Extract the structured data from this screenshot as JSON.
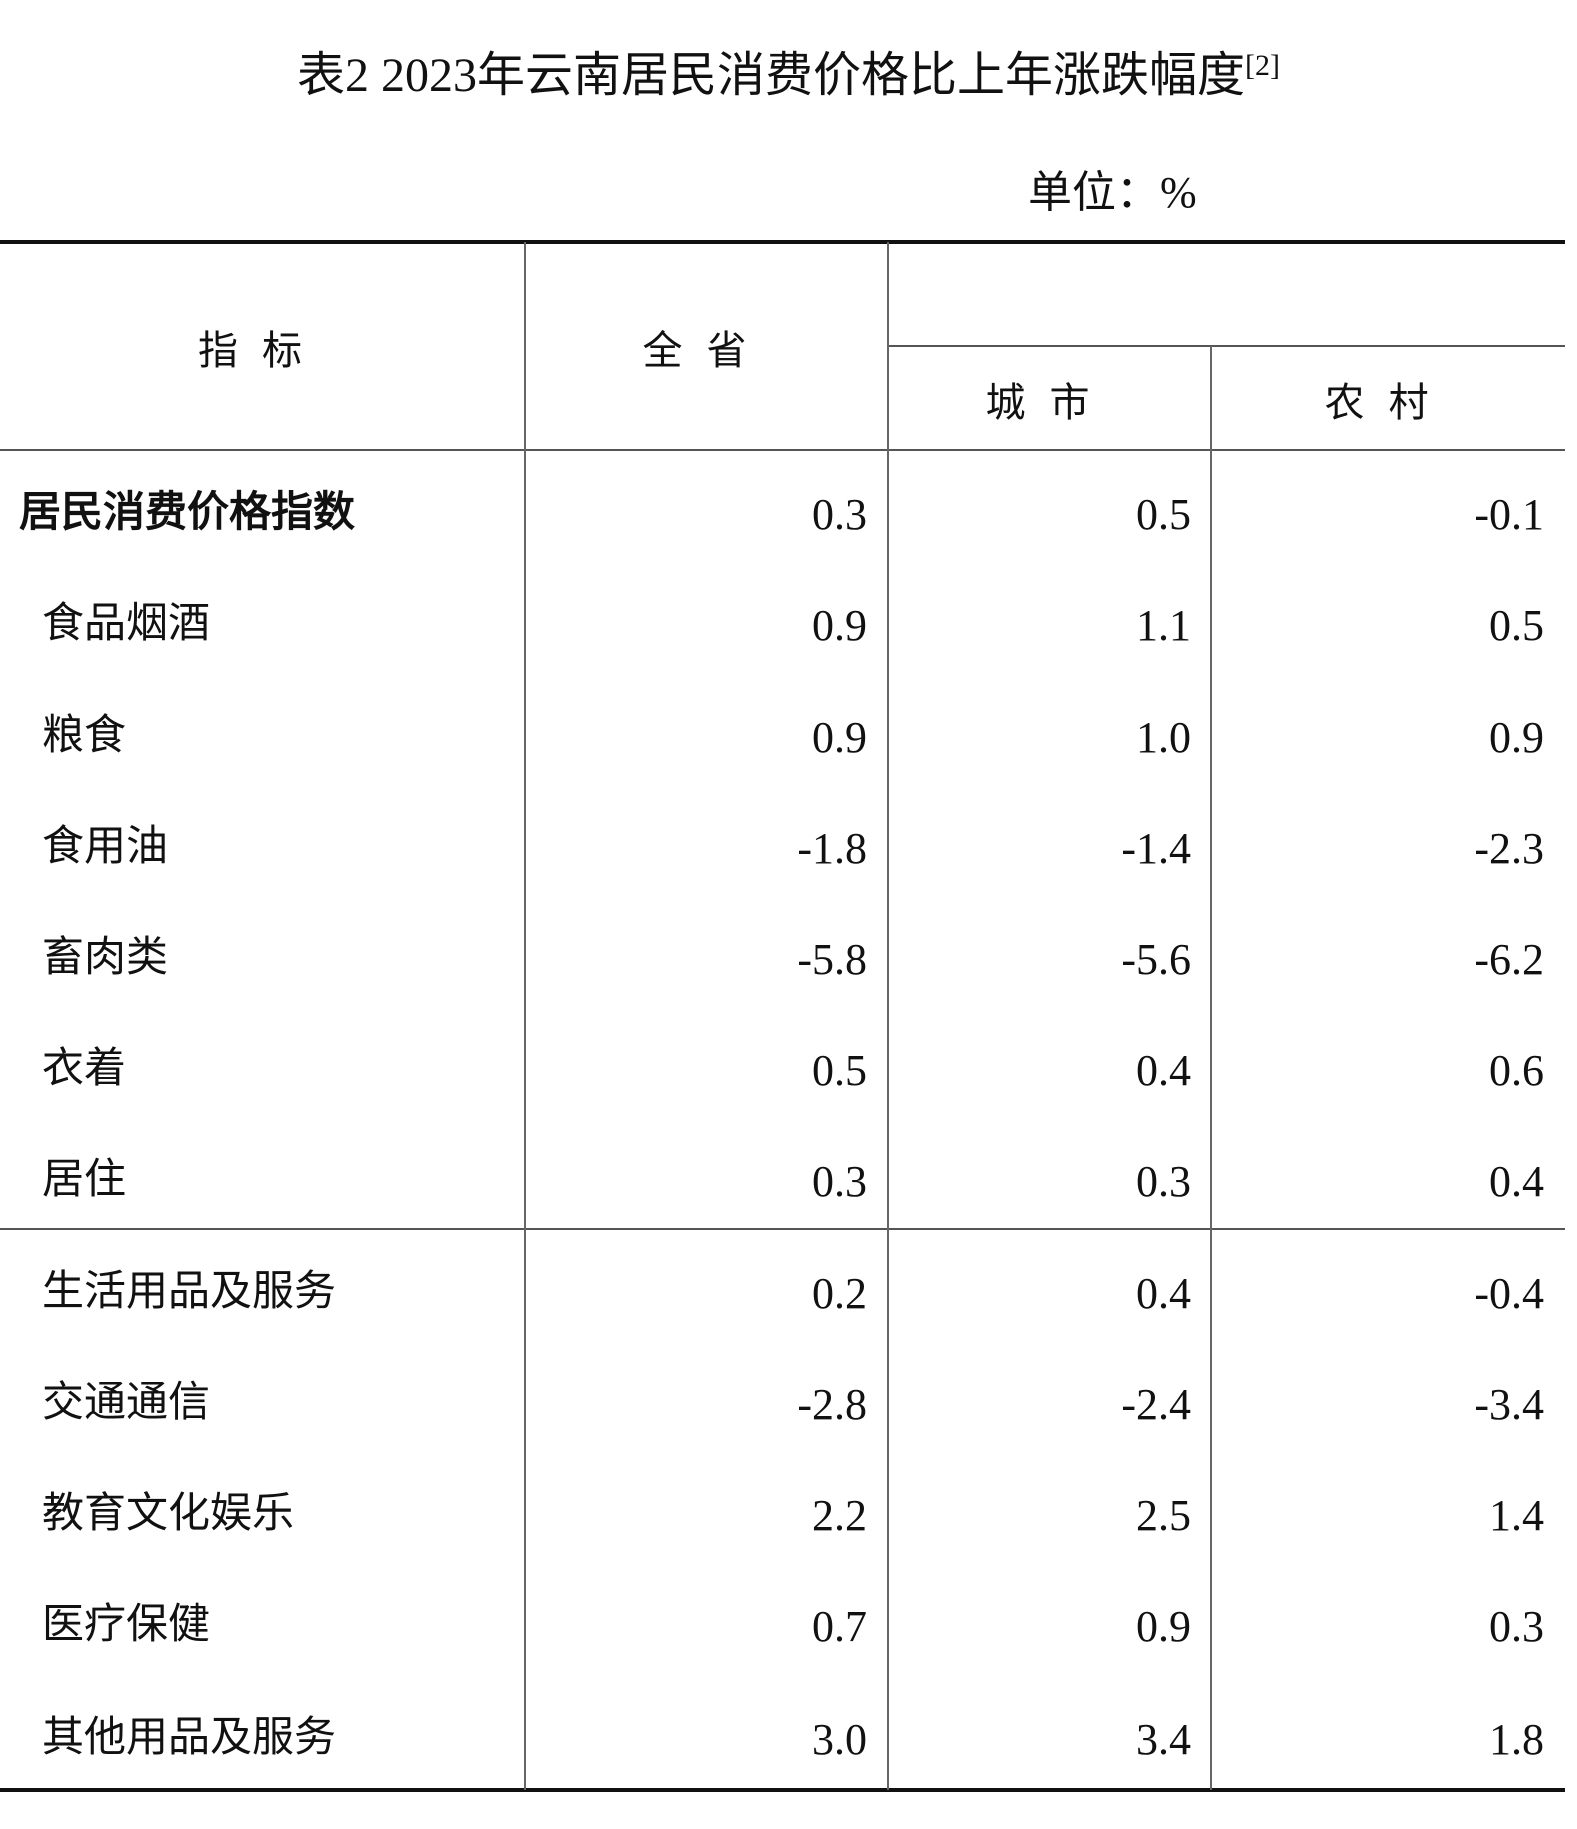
{
  "title": "表2 2023年云南居民消费价格比上年涨跌幅度",
  "title_note": "[2]",
  "unit": "单位：%",
  "headers": {
    "indicator": "指标",
    "province": "全省",
    "city": "城市",
    "rural": "农村"
  },
  "rows": [
    {
      "label": "居民消费价格指数",
      "province": "0.3",
      "city": "0.5",
      "rural": "-0.1"
    },
    {
      "label": "食品烟酒",
      "province": "0.9",
      "city": "1.1",
      "rural": "0.5"
    },
    {
      "label": "粮食",
      "province": "0.9",
      "city": "1.0",
      "rural": "0.9"
    },
    {
      "label": "食用油",
      "province": "-1.8",
      "city": "-1.4",
      "rural": "-2.3"
    },
    {
      "label": "畜肉类",
      "province": "-5.8",
      "city": "-5.6",
      "rural": "-6.2"
    },
    {
      "label": "衣着",
      "province": "0.5",
      "city": "0.4",
      "rural": "0.6"
    },
    {
      "label": "居住",
      "province": "0.3",
      "city": "0.3",
      "rural": "0.4"
    },
    {
      "label": "生活用品及服务",
      "province": "0.2",
      "city": "0.4",
      "rural": "-0.4"
    },
    {
      "label": "交通通信",
      "province": "-2.8",
      "city": "-2.4",
      "rural": "-3.4"
    },
    {
      "label": "教育文化娱乐",
      "province": "2.2",
      "city": "2.5",
      "rural": "1.4"
    },
    {
      "label": "医疗保健",
      "province": "0.7",
      "city": "0.9",
      "rural": "0.3"
    },
    {
      "label": "其他用品及服务",
      "province": "3.0",
      "city": "3.4",
      "rural": "1.8"
    }
  ]
}
